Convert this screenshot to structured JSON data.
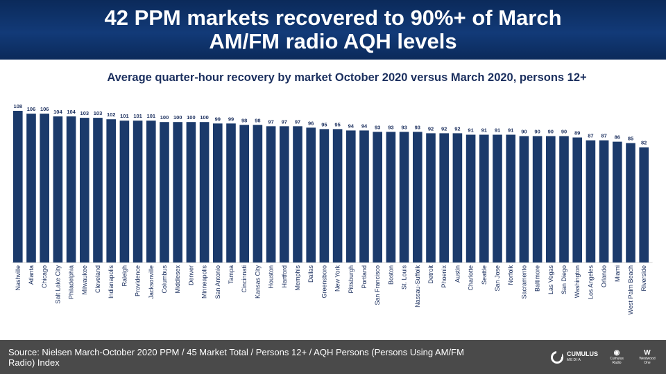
{
  "title": "42 PPM markets recovered to 90%+ of March AM/FM radio AQH levels",
  "chart_data": {
    "type": "bar",
    "title": "Average quarter-hour recovery by market October 2020 versus March 2020, persons 12+",
    "categories": [
      "Nashville",
      "Atlanta",
      "Chicago",
      "Salt Lake City",
      "Philadelphia",
      "Milwaukee",
      "Cleveland",
      "Indianapolis",
      "Raleigh",
      "Providence",
      "Jacksonville",
      "Columbus",
      "Middlesex",
      "Denver",
      "Minneapolis",
      "San Antonio",
      "Tampa",
      "Cincinnati",
      "Kansas City",
      "Houston",
      "Hartford",
      "Memphis",
      "Dallas",
      "Greensboro",
      "New York",
      "Pittsburgh",
      "Portland",
      "San Francisco",
      "Boston",
      "St. Louis",
      "Nassau-Suffolk",
      "Detroit",
      "Phoenix",
      "Austin",
      "Charlotte",
      "Seattle",
      "San Jose",
      "Norfolk",
      "Sacramento",
      "Baltimore",
      "Las Vegas",
      "San Diego",
      "Washington",
      "Los Angeles",
      "Orlando",
      "Miami",
      "West Palm Beach",
      "Riverside"
    ],
    "values": [
      108,
      106,
      106,
      104,
      104,
      103,
      103,
      102,
      101,
      101,
      101,
      100,
      100,
      100,
      100,
      99,
      99,
      98,
      98,
      97,
      97,
      97,
      96,
      95,
      95,
      94,
      94,
      93,
      93,
      93,
      93,
      92,
      92,
      92,
      91,
      91,
      91,
      91,
      90,
      90,
      90,
      90,
      89,
      87,
      87,
      86,
      85,
      82
    ],
    "ylim": [
      0,
      108
    ],
    "bar_color": "#1b3a6b",
    "xlabel": "",
    "ylabel": "",
    "grid": false,
    "data_labels": true
  },
  "footer": {
    "source": "Source: Nielsen March-October 2020 PPM / 45 Market Total / Persons 12+ / AQH Persons (Persons Using AM/FM Radio) Index",
    "logo_main": "CUMULUS",
    "logo_main_sub": "MEDIA",
    "logo_2": "Cumulus Radio",
    "logo_3": "Westwood One"
  }
}
